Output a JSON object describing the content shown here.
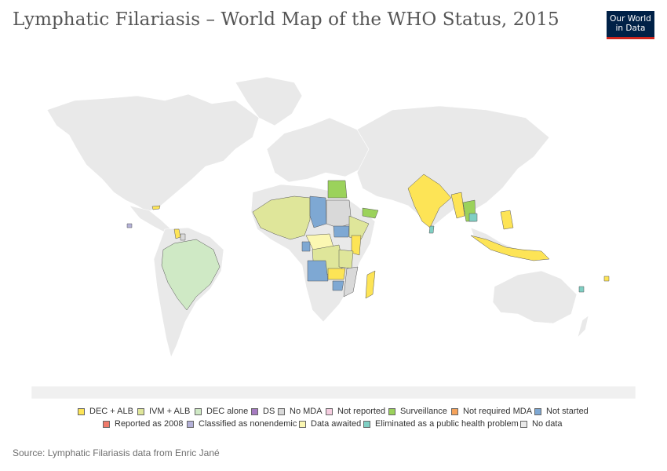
{
  "header": {
    "title": "Lymphatic Filariasis – World Map of the WHO Status, 2015",
    "logo_line1": "Our World",
    "logo_line2": "in Data"
  },
  "colors": {
    "no_data": "#e9e9e9",
    "dec_alb": "#fde456",
    "ivm_alb": "#dfe69a",
    "dec_alone": "#cfe9c5",
    "no_mda": "#d9d9d9",
    "surveillance": "#9bd25b",
    "not_started": "#7ea8d3",
    "data_awaited": "#fbf7b2",
    "eliminated": "#7fcfc3",
    "nonendemic": "#b4b1d8"
  },
  "legend": {
    "items": [
      {
        "label": "DEC + ALB",
        "color": "#fde456",
        "icon": "swatch-icon"
      },
      {
        "label": "IVM + ALB",
        "color": "#dfe69a",
        "icon": "swatch-icon"
      },
      {
        "label": "DEC alone",
        "color": "#cfe9c5",
        "icon": "swatch-icon"
      },
      {
        "label": "DS",
        "color": "#a67bc1",
        "icon": "swatch-icon"
      },
      {
        "label": "No MDA",
        "color": "#d9d9d9",
        "icon": "swatch-icon"
      },
      {
        "label": "Not reported",
        "color": "#f6cde0",
        "icon": "swatch-icon"
      },
      {
        "label": "Surveillance",
        "color": "#9bd25b",
        "icon": "swatch-icon"
      },
      {
        "label": "Not required MDA",
        "color": "#f5a35b",
        "icon": "swatch-icon"
      },
      {
        "label": "Not started",
        "color": "#7ea8d3",
        "icon": "swatch-icon"
      },
      {
        "label": "Reported as 2008",
        "color": "#ef7a6b",
        "icon": "swatch-icon"
      },
      {
        "label": "Classified as nonendemic",
        "color": "#b4b1d8",
        "icon": "swatch-icon"
      },
      {
        "label": "Data awaited",
        "color": "#fbf7b2",
        "icon": "swatch-icon"
      },
      {
        "label": "Eliminated as a public health problem",
        "color": "#7fcfc3",
        "icon": "swatch-icon"
      },
      {
        "label": "No data",
        "color": "#e9e9e9",
        "icon": "swatch-icon"
      }
    ]
  },
  "footer": {
    "source": "Source: Lymphatic Filariasis data from Enric Jané"
  }
}
